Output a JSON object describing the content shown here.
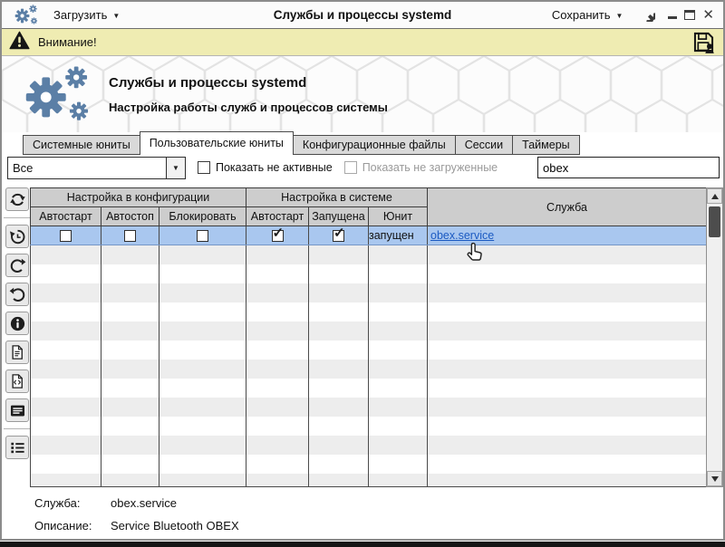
{
  "titlebar": {
    "load_label": "Загрузить",
    "title": "Службы и процессы systemd",
    "save_label": "Сохранить"
  },
  "banner": {
    "warning_text": "Внимание!"
  },
  "hero": {
    "title": "Службы и процессы systemd",
    "subtitle": "Настройка работы служб и процессов системы"
  },
  "tabs": [
    {
      "id": "system-units",
      "label": "Системные юниты",
      "active": false
    },
    {
      "id": "user-units",
      "label": "Пользовательские юниты",
      "active": true
    },
    {
      "id": "config-files",
      "label": "Конфигурационные файлы",
      "active": false
    },
    {
      "id": "sessions",
      "label": "Сессии",
      "active": false
    },
    {
      "id": "timers",
      "label": "Таймеры",
      "active": false
    }
  ],
  "filters": {
    "category_value": "Все",
    "show_inactive_label": "Показать не активные",
    "show_inactive_checked": false,
    "show_unloaded_label": "Показать не загруженные",
    "show_unloaded_checked": false,
    "show_unloaded_enabled": false,
    "search_value": "obex"
  },
  "toolbar": {
    "buttons": [
      "refresh",
      "history-restore",
      "redo",
      "undo",
      "info",
      "unit-file",
      "unit-source",
      "unit-menu",
      "unit-list"
    ]
  },
  "table": {
    "group_headers": [
      "Настройка в конфигурации",
      "Настройка в системе"
    ],
    "service_header": "Служба",
    "sub_headers": [
      "Автостарт",
      "Автостоп",
      "Блокировать",
      "Автостарт",
      "Запущена",
      "Юнит"
    ],
    "rows": [
      {
        "config_autostart": false,
        "config_autostop": false,
        "config_block": false,
        "system_autostart": true,
        "system_running": true,
        "unit_state": "запущен",
        "service": "obex.service",
        "selected": true
      }
    ],
    "empty_row_count": 13
  },
  "details": {
    "service_label": "Служба:",
    "service_value": "obex.service",
    "description_label": "Описание:",
    "description_value": "Service Bluetooth OBEX"
  },
  "icons": {
    "titlebar": [
      "app-logo-gears-icon",
      "dropdown-arrow-icon",
      "settings-gear-icon",
      "minimize-icon",
      "maximize-icon",
      "close-icon"
    ],
    "banner": [
      "warning-triangle-icon",
      "save-floppy-icon"
    ],
    "overlay": [
      "hand-cursor-icon"
    ],
    "scrollbar": [
      "scroll-up-icon",
      "scroll-down-icon"
    ]
  },
  "colors": {
    "accent_blue": "#5b7fa6",
    "selection_blue": "#a9c7ef",
    "banner_yellow": "#efecb2",
    "link_blue": "#1b5ac2",
    "tab_inactive_gray": "#d9d9d9",
    "table_header_gray": "#cdcdcd"
  }
}
